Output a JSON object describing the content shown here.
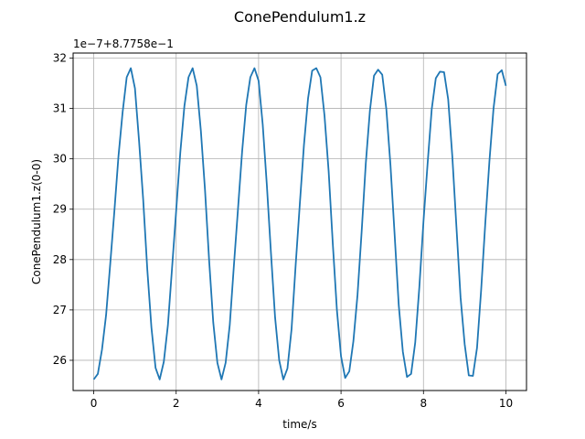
{
  "chart_data": {
    "type": "line",
    "title": "ConePendulum1.z",
    "xlabel": "time/s",
    "ylabel": "ConePendulum1.z(0-0)",
    "offset_label": "1e−7+8.7758e−1",
    "xlim": [
      -0.5,
      10.5
    ],
    "ylim": [
      25.4,
      32.1
    ],
    "xticks": [
      0,
      2,
      4,
      6,
      8,
      10
    ],
    "xtick_labels": [
      "0",
      "2",
      "4",
      "6",
      "8",
      "10"
    ],
    "yticks": [
      26,
      27,
      28,
      29,
      30,
      31,
      32
    ],
    "ytick_labels": [
      "26",
      "27",
      "28",
      "29",
      "30",
      "31",
      "32"
    ],
    "grid": true,
    "line_color": "#1f77b4",
    "series": [
      {
        "x": [
          0,
          0.1,
          0.2,
          0.3,
          0.4,
          0.5,
          0.6,
          0.7,
          0.8,
          0.9,
          1.0,
          1.1,
          1.2,
          1.3,
          1.4,
          1.5,
          1.6,
          1.7,
          1.8,
          1.9,
          2.0,
          2.1,
          2.2,
          2.3,
          2.4,
          2.5,
          2.6,
          2.7,
          2.8,
          2.9,
          3.0,
          3.1,
          3.2,
          3.3,
          3.4,
          3.5,
          3.6,
          3.7,
          3.8,
          3.9,
          4.0,
          4.1,
          4.2,
          4.3,
          4.4,
          4.5,
          4.6,
          4.7,
          4.8,
          4.9,
          5.0,
          5.1,
          5.2,
          5.3,
          5.4,
          5.5,
          5.6,
          5.7,
          5.8,
          5.9,
          6.0,
          6.1,
          6.2,
          6.3,
          6.4,
          6.5,
          6.6,
          6.7,
          6.8,
          6.9,
          7.0,
          7.1,
          7.2,
          7.3,
          7.4,
          7.5,
          7.6,
          7.7,
          7.8,
          7.9,
          8.0,
          8.1,
          8.2,
          8.3,
          8.4,
          8.5,
          8.6,
          8.7,
          8.8,
          8.9,
          9.0,
          9.1,
          9.2,
          9.3,
          9.4,
          9.5,
          9.6,
          9.7,
          9.8,
          9.9,
          10.0
        ],
        "values": [
          25.62,
          25.73,
          26.21,
          26.9,
          27.91,
          28.95,
          30.05,
          30.92,
          31.62,
          31.8,
          31.4,
          30.35,
          29.19,
          27.8,
          26.65,
          25.85,
          25.62,
          25.97,
          26.7,
          27.83,
          28.97,
          30.12,
          31.05,
          31.62,
          31.8,
          31.45,
          30.55,
          29.38,
          27.98,
          26.75,
          25.95,
          25.62,
          25.95,
          26.7,
          27.87,
          29.0,
          30.14,
          31.07,
          31.62,
          31.8,
          31.55,
          30.68,
          29.48,
          28.13,
          26.85,
          26.0,
          25.62,
          25.84,
          26.62,
          27.9,
          29.1,
          30.27,
          31.2,
          31.75,
          31.8,
          31.62,
          30.85,
          29.75,
          28.32,
          27.0,
          26.08,
          25.65,
          25.78,
          26.38,
          27.3,
          28.55,
          29.9,
          30.95,
          31.65,
          31.77,
          31.67,
          30.98,
          29.87,
          28.5,
          27.1,
          26.17,
          25.67,
          25.73,
          26.35,
          27.45,
          28.75,
          29.9,
          30.98,
          31.6,
          31.73,
          31.72,
          31.18,
          30.05,
          28.65,
          27.25,
          26.32,
          25.7,
          25.69,
          26.25,
          27.4,
          28.72,
          29.95,
          31.0,
          31.68,
          31.76,
          31.45
        ]
      }
    ]
  }
}
